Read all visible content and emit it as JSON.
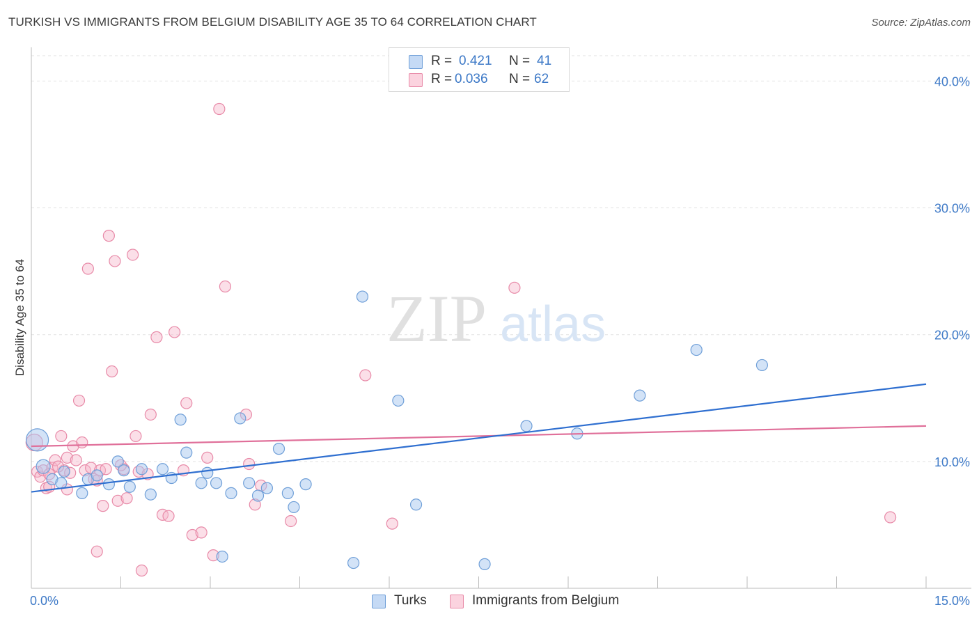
{
  "header": {
    "title": "TURKISH VS IMMIGRANTS FROM BELGIUM DISABILITY AGE 35 TO 64 CORRELATION CHART",
    "source": "Source: ZipAtlas.com"
  },
  "watermark": {
    "zip": "ZIP",
    "atlas": "atlas"
  },
  "legend": {
    "rows": [
      {
        "r_label": "R =",
        "r_value": "0.421",
        "n_label": "N =",
        "n_value": "41",
        "color": "#a8c8f0"
      },
      {
        "r_label": "R =",
        "r_value": "0.036",
        "n_label": "N =",
        "n_value": "62",
        "color": "#f6b9cb"
      }
    ]
  },
  "bottom_legend": {
    "turks": "Turks",
    "belgium": "Immigrants from Belgium"
  },
  "chart_data": {
    "type": "scatter",
    "title": "TURKISH VS IMMIGRANTS FROM BELGIUM DISABILITY AGE 35 TO 64 CORRELATION CHART",
    "xlabel": "",
    "ylabel": "Disability Age 35 to 64",
    "xlim": [
      0,
      15
    ],
    "ylim": [
      0,
      42
    ],
    "x_tick_labels": [
      "0.0%",
      "15.0%"
    ],
    "y_ticks": [
      10,
      20,
      30,
      40
    ],
    "y_tick_labels": [
      "10.0%",
      "20.0%",
      "30.0%",
      "40.0%"
    ],
    "grid": true,
    "legend_position": "top-center",
    "colors": {
      "turks_fill": "#a8c8f0",
      "turks_stroke": "#6f9fd8",
      "turks_line": "#2f6fd0",
      "belgium_fill": "#f6b9cb",
      "belgium_stroke": "#e88aa8",
      "belgium_line": "#e0709a",
      "tick_label": "#3d79c7"
    },
    "series": [
      {
        "name": "Turks",
        "trend": {
          "x": [
            0,
            15
          ],
          "y": [
            7.6,
            16.1
          ]
        },
        "points": [
          [
            0.1,
            11.7,
            16
          ],
          [
            0.2,
            9.6,
            10
          ],
          [
            0.35,
            8.6,
            8
          ],
          [
            0.5,
            8.3,
            8
          ],
          [
            0.55,
            9.2,
            8
          ],
          [
            0.85,
            7.5,
            8
          ],
          [
            0.95,
            8.6,
            8
          ],
          [
            1.1,
            8.9,
            8
          ],
          [
            1.3,
            8.2,
            8
          ],
          [
            1.45,
            10.0,
            8
          ],
          [
            1.55,
            9.3,
            8
          ],
          [
            1.65,
            8.0,
            8
          ],
          [
            1.85,
            9.4,
            8
          ],
          [
            2.0,
            7.4,
            8
          ],
          [
            2.2,
            9.4,
            8
          ],
          [
            2.35,
            8.7,
            8
          ],
          [
            2.5,
            13.3,
            8
          ],
          [
            2.6,
            10.7,
            8
          ],
          [
            2.85,
            8.3,
            8
          ],
          [
            2.95,
            9.1,
            8
          ],
          [
            3.1,
            8.3,
            8
          ],
          [
            3.2,
            2.5,
            8
          ],
          [
            3.35,
            7.5,
            8
          ],
          [
            3.5,
            13.4,
            8
          ],
          [
            3.65,
            8.3,
            8
          ],
          [
            3.8,
            7.3,
            8
          ],
          [
            3.95,
            7.9,
            8
          ],
          [
            4.15,
            11.0,
            8
          ],
          [
            4.3,
            7.5,
            8
          ],
          [
            4.4,
            6.4,
            8
          ],
          [
            4.6,
            8.2,
            8
          ],
          [
            5.4,
            2.0,
            8
          ],
          [
            5.55,
            23.0,
            8
          ],
          [
            6.15,
            14.8,
            8
          ],
          [
            6.45,
            6.6,
            8
          ],
          [
            7.6,
            1.9,
            8
          ],
          [
            8.3,
            12.8,
            8
          ],
          [
            9.15,
            12.2,
            8
          ],
          [
            10.2,
            15.2,
            8
          ],
          [
            11.15,
            18.8,
            8
          ],
          [
            12.25,
            17.6,
            8
          ]
        ]
      },
      {
        "name": "Immigrants from Belgium",
        "trend": {
          "x": [
            0,
            15
          ],
          "y": [
            11.2,
            12.8
          ]
        },
        "points": [
          [
            0.05,
            11.5,
            12
          ],
          [
            0.1,
            9.2,
            8
          ],
          [
            0.15,
            8.8,
            8
          ],
          [
            0.2,
            9.3,
            8
          ],
          [
            0.25,
            7.9,
            8
          ],
          [
            0.3,
            8.0,
            8
          ],
          [
            0.35,
            9.5,
            8
          ],
          [
            0.4,
            10.1,
            8
          ],
          [
            0.5,
            12.0,
            8
          ],
          [
            0.55,
            9.3,
            8
          ],
          [
            0.6,
            10.3,
            8
          ],
          [
            0.65,
            9.1,
            8
          ],
          [
            0.7,
            11.2,
            8
          ],
          [
            0.75,
            10.1,
            8
          ],
          [
            0.8,
            14.8,
            8
          ],
          [
            0.85,
            11.5,
            8
          ],
          [
            0.9,
            9.3,
            8
          ],
          [
            0.95,
            25.2,
            8
          ],
          [
            1.0,
            9.5,
            8
          ],
          [
            1.05,
            8.6,
            8
          ],
          [
            1.1,
            2.9,
            8
          ],
          [
            1.15,
            9.3,
            8
          ],
          [
            1.2,
            6.5,
            8
          ],
          [
            1.25,
            9.4,
            8
          ],
          [
            1.3,
            27.8,
            8
          ],
          [
            1.35,
            17.1,
            8
          ],
          [
            1.4,
            25.8,
            8
          ],
          [
            1.45,
            6.9,
            8
          ],
          [
            1.55,
            9.4,
            8
          ],
          [
            1.6,
            7.1,
            8
          ],
          [
            1.7,
            26.3,
            8
          ],
          [
            1.75,
            12.0,
            8
          ],
          [
            1.8,
            9.2,
            8
          ],
          [
            1.85,
            1.4,
            8
          ],
          [
            1.95,
            9.0,
            8
          ],
          [
            2.0,
            13.7,
            8
          ],
          [
            2.1,
            19.8,
            8
          ],
          [
            2.2,
            5.8,
            8
          ],
          [
            2.3,
            5.7,
            8
          ],
          [
            2.4,
            20.2,
            8
          ],
          [
            2.55,
            9.3,
            8
          ],
          [
            2.6,
            14.6,
            8
          ],
          [
            2.7,
            4.2,
            8
          ],
          [
            2.85,
            4.4,
            8
          ],
          [
            2.95,
            10.3,
            8
          ],
          [
            3.05,
            2.6,
            8
          ],
          [
            3.15,
            37.8,
            8
          ],
          [
            3.25,
            23.8,
            8
          ],
          [
            3.6,
            13.7,
            8
          ],
          [
            3.65,
            9.8,
            8
          ],
          [
            3.75,
            6.6,
            8
          ],
          [
            3.85,
            8.1,
            8
          ],
          [
            4.35,
            5.3,
            8
          ],
          [
            5.6,
            16.8,
            8
          ],
          [
            6.05,
            5.1,
            8
          ],
          [
            8.1,
            23.7,
            8
          ],
          [
            14.4,
            5.6,
            8
          ],
          [
            0.6,
            7.8,
            8
          ],
          [
            0.45,
            9.6,
            8
          ],
          [
            1.1,
            8.5,
            8
          ],
          [
            1.5,
            9.7,
            8
          ],
          [
            0.3,
            9.0,
            8
          ]
        ]
      }
    ]
  }
}
